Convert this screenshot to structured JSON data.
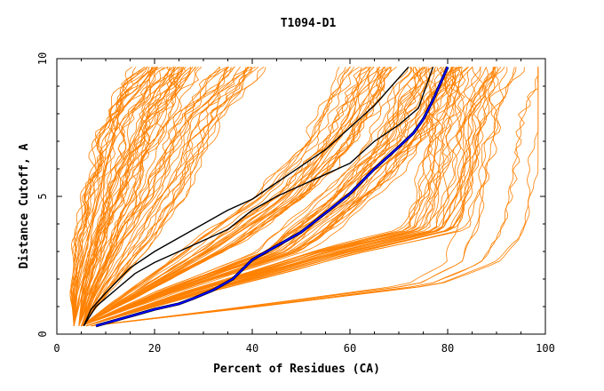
{
  "chart_data": {
    "type": "line",
    "title": "T1094-D1",
    "xlabel": "Percent of Residues (CA)",
    "ylabel": "Distance Cutoff, A",
    "xlim": [
      0,
      100
    ],
    "ylim": [
      0,
      10
    ],
    "xticks": [
      0,
      20,
      40,
      60,
      80,
      100
    ],
    "yticks": [
      0,
      5,
      10
    ],
    "grid": false,
    "colors": {
      "bulk": "#ff8000",
      "black": "#000000",
      "blue": "#0000ff"
    },
    "bands": [
      {
        "name": "",
        "count": 22,
        "x_at": [
          [
            0.3,
            3.5
          ],
          [
            1.5,
            4.0
          ],
          [
            5,
            8.5
          ],
          [
            8,
            13
          ],
          [
            9.7,
            20
          ]
        ]
      },
      {
        "name": "",
        "count": 22,
        "x_at": [
          [
            0.3,
            4.5
          ],
          [
            1.5,
            6.5
          ],
          [
            5,
            14
          ],
          [
            8,
            21
          ],
          [
            9.7,
            27
          ]
        ]
      },
      {
        "name": "",
        "count": 22,
        "x_at": [
          [
            0.3,
            5
          ],
          [
            1.5,
            9
          ],
          [
            5,
            22
          ],
          [
            8,
            30
          ],
          [
            9.7,
            38
          ]
        ]
      },
      {
        "name": "",
        "count": 28,
        "x_at": [
          [
            0.3,
            5
          ],
          [
            1.5,
            16
          ],
          [
            3,
            30
          ],
          [
            5,
            46
          ],
          [
            7,
            56
          ],
          [
            9.7,
            64
          ]
        ]
      },
      {
        "name": "",
        "count": 30,
        "x_at": [
          [
            0.3,
            5
          ],
          [
            1.5,
            22
          ],
          [
            3,
            46
          ],
          [
            5,
            60
          ],
          [
            7,
            70
          ],
          [
            9.7,
            77
          ]
        ]
      },
      {
        "name": "",
        "count": 30,
        "x_at": [
          [
            0.3,
            6
          ],
          [
            1.5,
            28
          ],
          [
            3,
            58
          ],
          [
            3.8,
            77
          ],
          [
            5,
            80
          ],
          [
            7,
            82
          ],
          [
            9.7,
            86
          ]
        ]
      },
      {
        "name": "",
        "count": 7,
        "x_at": [
          [
            0.3,
            7
          ],
          [
            1.0,
            40
          ],
          [
            1.8,
            75
          ],
          [
            2.6,
            85
          ],
          [
            4,
            89
          ],
          [
            6,
            91
          ],
          [
            8,
            93
          ],
          [
            9.7,
            97
          ]
        ]
      }
    ],
    "series": [
      {
        "name": "",
        "color": "#000000",
        "x": [
          5.5,
          7,
          10,
          15,
          20,
          25,
          30,
          35,
          40,
          45,
          50,
          55,
          60,
          65,
          70,
          72
        ],
        "y": [
          0.3,
          0.9,
          1.5,
          2.4,
          3.0,
          3.5,
          4.0,
          4.5,
          4.9,
          5.5,
          6.1,
          6.7,
          7.5,
          8.3,
          9.3,
          9.7
        ]
      },
      {
        "name": "",
        "color": "#000000",
        "x": [
          5.5,
          8,
          12,
          16,
          20,
          25,
          30,
          35,
          40,
          45,
          50,
          55,
          60,
          65,
          70,
          74,
          77
        ],
        "y": [
          0.3,
          1.0,
          1.6,
          2.2,
          2.6,
          3.0,
          3.4,
          3.8,
          4.5,
          5.0,
          5.4,
          5.8,
          6.2,
          7.0,
          7.6,
          8.2,
          9.7
        ]
      },
      {
        "name": "",
        "color": "#0000ff",
        "x": [
          8,
          12,
          16,
          20,
          25,
          28,
          32,
          36,
          40,
          45,
          50,
          55,
          60,
          65,
          70,
          73,
          75,
          77,
          79,
          80
        ],
        "y": [
          0.3,
          0.5,
          0.7,
          0.9,
          1.1,
          1.3,
          1.6,
          2.0,
          2.7,
          3.2,
          3.7,
          4.4,
          5.1,
          6.0,
          6.8,
          7.3,
          7.8,
          8.5,
          9.3,
          9.7
        ]
      }
    ]
  }
}
